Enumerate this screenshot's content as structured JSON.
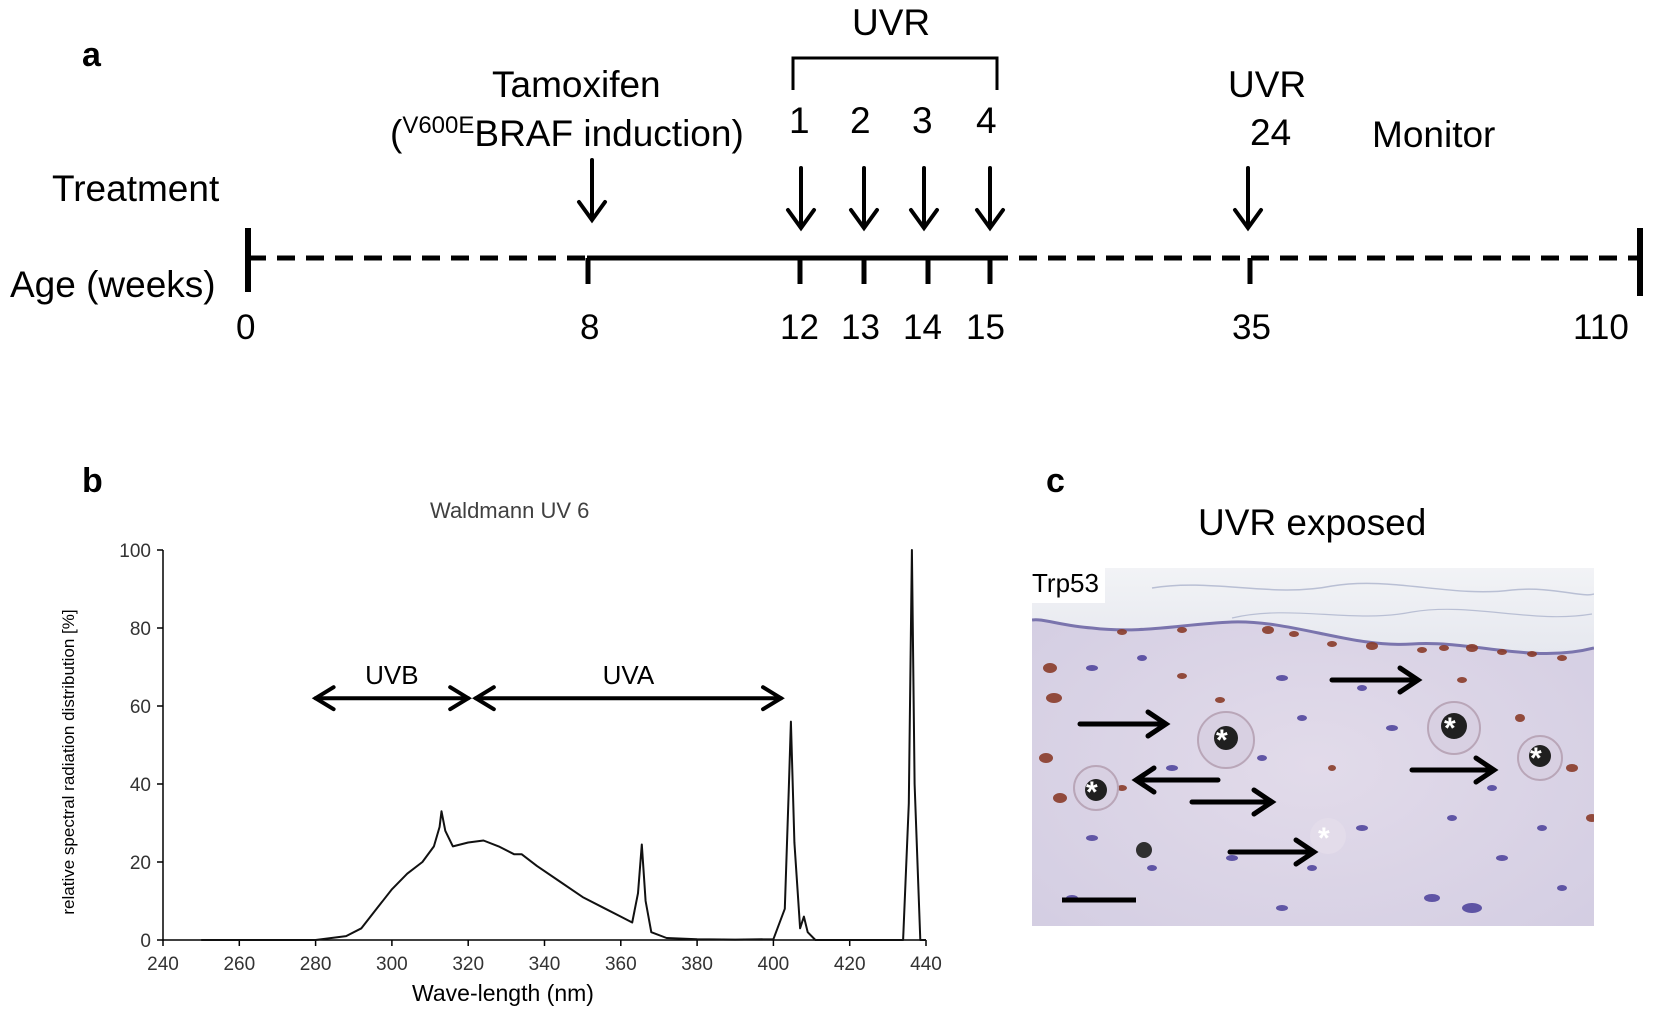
{
  "figure": {
    "panels": {
      "a": {
        "letter": "a",
        "row_labels": {
          "treatment": "Treatment",
          "age": "Age (weeks)"
        },
        "tamoxifen": {
          "line1": "Tamoxifen",
          "sup": "V600E",
          "line2_rest": "BRAF induction)",
          "open_paren": "("
        },
        "uvr_bracket_label": "UVR",
        "uvr_doses": [
          "1",
          "2",
          "3",
          "4"
        ],
        "uvr_late": {
          "line1": "UVR",
          "line2": "24"
        },
        "monitor": "Monitor",
        "ages": [
          "0",
          "8",
          "12",
          "13",
          "14",
          "15",
          "35",
          "110"
        ]
      },
      "b": {
        "letter": "b",
        "chart_data": {
          "type": "line",
          "title": "Waldmann UV 6",
          "xlabel": "Wave-length (nm)",
          "ylabel": "relative spectral radiation distribution [%]",
          "xlim": [
            240,
            440
          ],
          "ylim": [
            0,
            100
          ],
          "xticks": [
            "240",
            "260",
            "280",
            "300",
            "320",
            "340",
            "360",
            "380",
            "400",
            "420",
            "440"
          ],
          "yticks": [
            "0",
            "20",
            "40",
            "60",
            "80",
            "100"
          ],
          "grid": false,
          "series": [
            {
              "x": [
                250,
                280,
                288,
                292,
                296,
                300,
                304,
                308,
                311,
                312.5,
                313,
                314,
                316,
                320,
                324,
                328,
                332,
                334,
                338,
                344,
                350,
                356,
                360,
                363,
                364.5,
                365.5,
                366.5,
                368,
                372,
                380,
                390,
                400,
                403,
                404,
                404.6,
                405.5,
                407,
                408,
                409,
                411,
                420,
                430,
                434,
                435.5,
                436.3,
                437,
                438.5,
                440
              ],
              "values": [
                0,
                0,
                1,
                3,
                8,
                13,
                17,
                20,
                24,
                29,
                33,
                28,
                24,
                25,
                25.5,
                24,
                22,
                22,
                19,
                15,
                11,
                8,
                6,
                4.5,
                12,
                24.5,
                10,
                2,
                0.5,
                0.2,
                0.1,
                0.2,
                8,
                38,
                56,
                25,
                3,
                6,
                2,
                0,
                0,
                0,
                0,
                35,
                100,
                40,
                0,
                0
              ]
            }
          ],
          "annotations": [
            {
              "label": "UVB",
              "from": 280,
              "to": 320,
              "y": 62
            },
            {
              "label": "UVA",
              "from": 322,
              "to": 402,
              "y": 62
            }
          ]
        }
      },
      "c": {
        "letter": "c",
        "title": "UVR exposed",
        "stain_label": "Trp53"
      }
    }
  }
}
